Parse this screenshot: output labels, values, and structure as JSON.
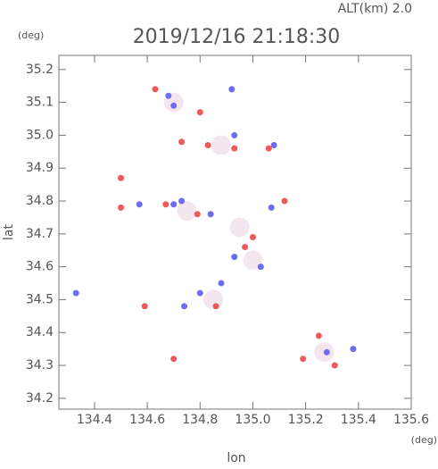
{
  "chart_data": {
    "type": "scatter",
    "title": "2019/12/16 21:18:30",
    "subtitle": "ALT(km) 2.0",
    "y_unit": "(deg)",
    "x_unit": "(deg)",
    "x_label": "lon",
    "y_label": "lat",
    "xlim": [
      134.265,
      135.6
    ],
    "ylim": [
      34.167,
      35.243
    ],
    "xticks": [
      134.4,
      134.6,
      134.8,
      {
        "value": 135,
        "label": "135.0"
      },
      135.2,
      135.4,
      135.6
    ],
    "yticks": [
      34.2,
      34.3,
      34.4,
      34.5,
      34.6,
      34.7,
      34.8,
      34.9,
      {
        "value": 35,
        "label": "35.0"
      },
      35.1,
      35.2
    ],
    "series": [
      {
        "color": "#f3e6ee",
        "x": [
          134.75,
          134.88,
          134.7,
          134.85,
          135.27,
          135.0,
          134.95
        ],
        "y": [
          34.77,
          34.97,
          35.1,
          34.5,
          34.34,
          34.62,
          34.72
        ]
      },
      {
        "color": "#6d6df0",
        "x": [
          134.68,
          134.7,
          134.92,
          134.93,
          135.08,
          134.73,
          134.7,
          134.84,
          134.57,
          135.07,
          134.88,
          134.8,
          134.74,
          135.28,
          135.38,
          134.33,
          134.93,
          135.03
        ],
        "y": [
          35.12,
          35.09,
          35.14,
          35.0,
          34.97,
          34.8,
          34.79,
          34.76,
          34.79,
          34.78,
          34.55,
          34.52,
          34.48,
          34.34,
          34.35,
          34.52,
          34.63,
          34.6
        ]
      },
      {
        "color": "#ee5a5a",
        "x": [
          134.63,
          134.8,
          134.73,
          134.83,
          134.93,
          135.06,
          134.5,
          134.79,
          134.67,
          135.12,
          135.0,
          134.97,
          134.86,
          134.59,
          135.19,
          135.25,
          135.31,
          134.5,
          134.7
        ],
        "y": [
          35.14,
          35.07,
          34.98,
          34.97,
          34.96,
          34.96,
          34.78,
          34.76,
          34.79,
          34.8,
          34.69,
          34.66,
          34.48,
          34.48,
          34.32,
          34.39,
          34.3,
          34.87,
          34.32
        ]
      }
    ]
  }
}
